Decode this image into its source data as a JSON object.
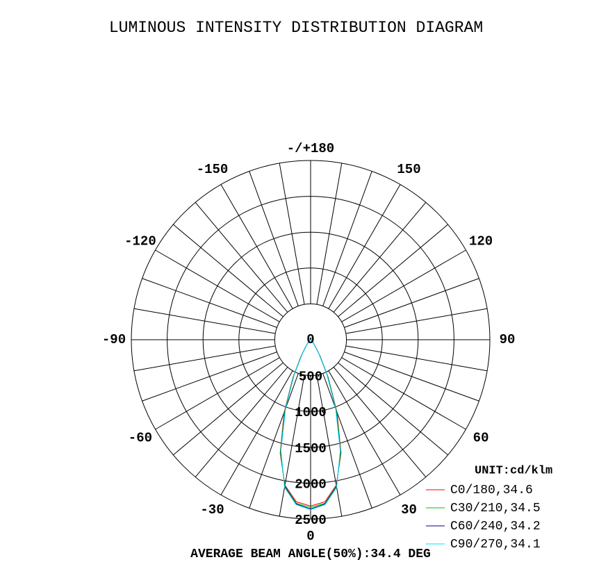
{
  "chart_data": {
    "type": "polar",
    "title": "LUMINOUS INTENSITY DISTRIBUTION DIAGRAM",
    "unit_label": "UNIT:cd/klm",
    "footer": "AVERAGE BEAM ANGLE(50%):34.4 DEG",
    "x": [
      0,
      5,
      10,
      15,
      20,
      25,
      30,
      35,
      40,
      50,
      60,
      70,
      80,
      90
    ],
    "series": [
      {
        "name": "C0/180,34.6",
        "color": "#ff0000",
        "values": [
          2320,
          2270,
          2060,
          1640,
          1080,
          580,
          270,
          120,
          60,
          20,
          5,
          2,
          0,
          0
        ]
      },
      {
        "name": "C30/210,34.5",
        "color": "#00c000",
        "values": [
          2340,
          2290,
          2070,
          1630,
          1060,
          570,
          260,
          115,
          55,
          18,
          5,
          2,
          0,
          0
        ]
      },
      {
        "name": "C60/240,34.2",
        "color": "#000080",
        "values": [
          2360,
          2300,
          2080,
          1610,
          1030,
          550,
          250,
          110,
          50,
          16,
          4,
          1,
          0,
          0
        ]
      },
      {
        "name": "C90/270,34.1",
        "color": "#00e0ff",
        "values": [
          2370,
          2310,
          2090,
          1600,
          1020,
          540,
          245,
          105,
          48,
          15,
          4,
          1,
          0,
          0
        ]
      }
    ],
    "rlim": [
      0,
      2500
    ],
    "rticks": [
      0,
      500,
      1000,
      1500,
      2000,
      2500
    ],
    "angle_ticks": [
      0,
      30,
      60,
      90,
      120,
      150,
      {
        "value": 180,
        "label": "-/+180"
      },
      -150,
      -120,
      -90,
      -60,
      -30
    ],
    "grid": true
  }
}
